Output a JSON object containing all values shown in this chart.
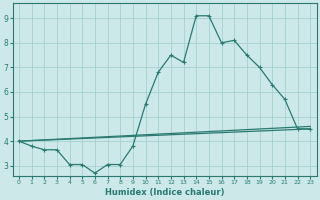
{
  "xlabel": "Humidex (Indice chaleur)",
  "bg_color": "#cce8e8",
  "grid_color": "#9ecece",
  "line_color": "#2a7a72",
  "xlim": [
    -0.5,
    23.5
  ],
  "ylim": [
    2.6,
    9.6
  ],
  "xticks": [
    0,
    1,
    2,
    3,
    4,
    5,
    6,
    7,
    8,
    9,
    10,
    11,
    12,
    13,
    14,
    15,
    16,
    17,
    18,
    19,
    20,
    21,
    22,
    23
  ],
  "yticks": [
    3,
    4,
    5,
    6,
    7,
    8,
    9
  ],
  "line1_x": [
    0,
    1,
    2,
    3,
    4,
    5,
    6,
    7,
    8,
    9,
    10,
    11,
    12,
    13,
    14,
    15,
    16,
    17,
    18,
    19,
    20,
    21,
    22,
    23
  ],
  "line1_y": [
    4.0,
    3.8,
    3.65,
    3.65,
    3.05,
    3.05,
    2.7,
    3.05,
    3.05,
    3.8,
    5.5,
    6.8,
    7.5,
    7.2,
    9.1,
    9.1,
    8.0,
    8.1,
    7.5,
    7.0,
    6.3,
    5.7,
    4.5,
    4.5
  ],
  "line2_x": [
    0,
    23
  ],
  "line2_y": [
    4.0,
    4.5
  ],
  "line3_x": [
    0,
    23
  ],
  "line3_y": [
    4.0,
    4.6
  ]
}
